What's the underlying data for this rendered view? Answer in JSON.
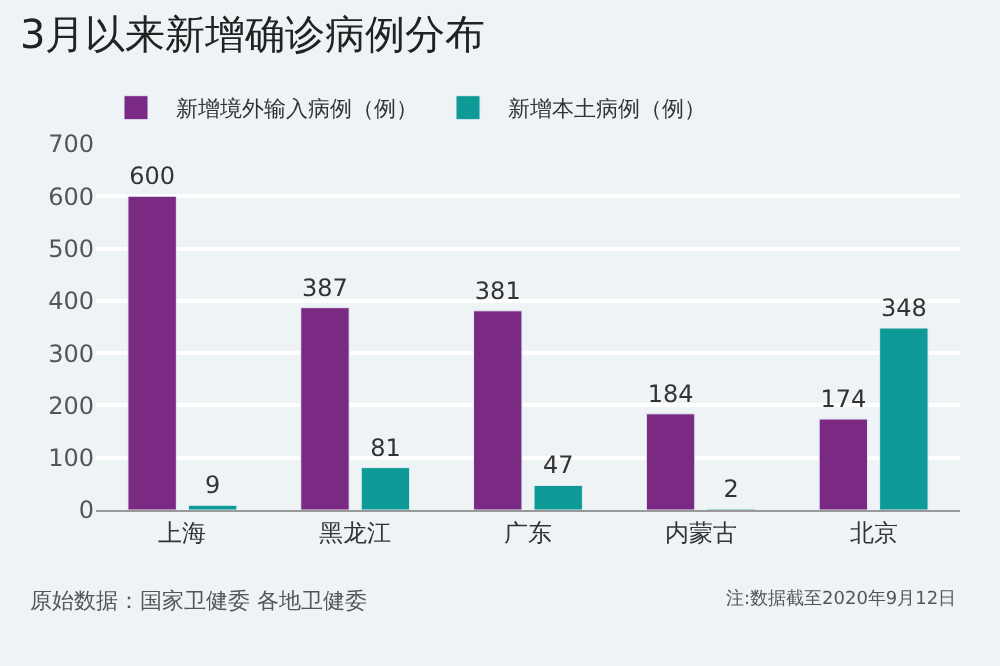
{
  "chart_data": {
    "type": "bar",
    "title": "3月以来新增确诊病例分布",
    "categories": [
      "上海",
      "黑龙江",
      "广东",
      "内蒙古",
      "北京"
    ],
    "series": [
      {
        "name": "新增境外输入病例（例）",
        "color": "#7b2a83",
        "values": [
          600,
          387,
          381,
          184,
          174
        ],
        "value_labels": [
          "600",
          "387",
          "381",
          "184",
          "174"
        ]
      },
      {
        "name": "新增本土病例（例）",
        "color": "#0e9a97",
        "values": [
          9,
          81,
          47,
          2,
          348
        ],
        "value_labels": [
          "9",
          "81",
          "47",
          "2",
          "348"
        ]
      }
    ],
    "ylim": [
      0,
      700
    ],
    "yticks": [
      0,
      100,
      200,
      300,
      400,
      500,
      600,
      700
    ],
    "grid": "y",
    "legend": "top left",
    "annotations": [
      "原始数据：国家卫健委 各地卫健委",
      "注:数据截至2020年9月12日"
    ]
  }
}
